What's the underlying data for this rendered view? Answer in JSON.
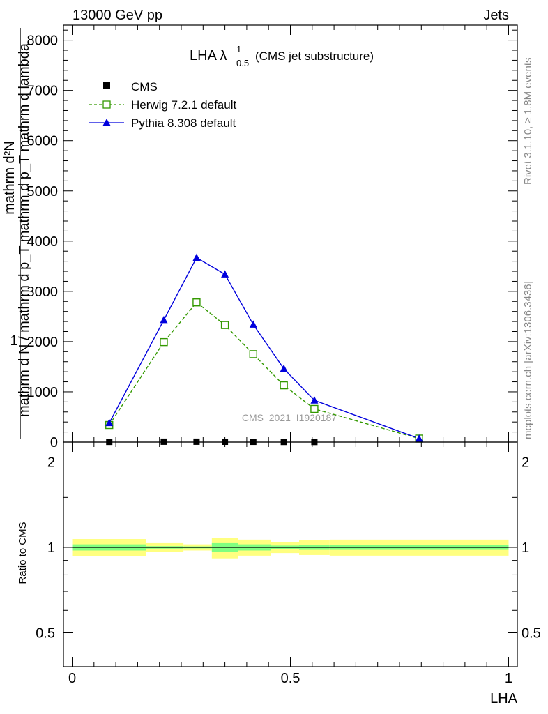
{
  "header": {
    "left": "13000 GeV pp",
    "right": "Jets"
  },
  "side_text": {
    "rivet": "Rivet 3.1.10, ≥ 1.8M events",
    "mcplots": "mcplots.cern.ch [arXiv:1306.3436]"
  },
  "watermark": "CMS_2021_I1920187",
  "chart_data": {
    "type": "line",
    "title_main": "LHA λ",
    "title_sup": "1",
    "title_sub": "0.5",
    "title_suffix": "(CMS jet substructure)",
    "xlabel": "LHA",
    "ylabel_top": "1",
    "ylabel_num": "mathrm d²N",
    "ylabel_den": "mathrm d N / mathrm d p_T mathrm d p_T mathrm d lambda",
    "xlim": [
      -0.02,
      1.02
    ],
    "ylim": [
      0,
      8300
    ],
    "x_ticks": [
      0,
      0.5,
      1
    ],
    "x_tick_labels": [
      "0",
      "0.5",
      "1"
    ],
    "y_ticks": [
      0,
      1000,
      2000,
      3000,
      4000,
      5000,
      6000,
      7000,
      8000
    ],
    "y_tick_labels": [
      "0",
      "1000",
      "2000",
      "3000",
      "4000",
      "5000",
      "6000",
      "7000",
      "8000"
    ],
    "ratio_ylabel": "Ratio to CMS",
    "ratio_ylim": [
      0.38,
      2.35
    ],
    "ratio_ticks": [
      0.5,
      1,
      2
    ],
    "ratio_tick_labels": [
      "0.5",
      "1",
      "2"
    ],
    "series": [
      {
        "name": "CMS",
        "color": "#000000",
        "marker": "square-filled",
        "style": "none",
        "x": [
          0.085,
          0.21,
          0.285,
          0.35,
          0.415,
          0.485,
          0.555
        ],
        "y": [
          5,
          8,
          8,
          7,
          6,
          4,
          3
        ]
      },
      {
        "name": "Herwig 7.2.1 default",
        "color": "#339900",
        "marker": "square-open",
        "style": "dashed",
        "x": [
          0.085,
          0.21,
          0.285,
          0.35,
          0.415,
          0.485,
          0.555,
          0.795
        ],
        "y": [
          340,
          1990,
          2780,
          2330,
          1750,
          1130,
          660,
          70
        ]
      },
      {
        "name": "Pythia 8.308 default",
        "color": "#0000dd",
        "marker": "triangle",
        "style": "solid",
        "x": [
          0.085,
          0.21,
          0.285,
          0.35,
          0.415,
          0.485,
          0.555,
          0.795
        ],
        "y": [
          380,
          2430,
          3670,
          3340,
          2340,
          1460,
          830,
          70
        ]
      }
    ],
    "ratio_bands": {
      "bins": [
        [
          0.0,
          0.17
        ],
        [
          0.17,
          0.255
        ],
        [
          0.255,
          0.32
        ],
        [
          0.32,
          0.38
        ],
        [
          0.38,
          0.455
        ],
        [
          0.455,
          0.52
        ],
        [
          0.52,
          0.59
        ],
        [
          0.59,
          1.0
        ]
      ],
      "inner": [
        [
          0.975,
          1.025
        ],
        [
          0.99,
          1.01
        ],
        [
          0.992,
          1.008
        ],
        [
          0.965,
          1.035
        ],
        [
          0.975,
          1.025
        ],
        [
          0.985,
          1.015
        ],
        [
          0.98,
          1.02
        ],
        [
          0.98,
          1.02
        ]
      ],
      "outer": [
        [
          0.93,
          1.07
        ],
        [
          0.965,
          1.035
        ],
        [
          0.975,
          1.025
        ],
        [
          0.915,
          1.08
        ],
        [
          0.935,
          1.065
        ],
        [
          0.955,
          1.045
        ],
        [
          0.94,
          1.06
        ],
        [
          0.935,
          1.065
        ]
      ],
      "inner_color": "#80ff80",
      "outer_color": "#ffff80"
    }
  }
}
